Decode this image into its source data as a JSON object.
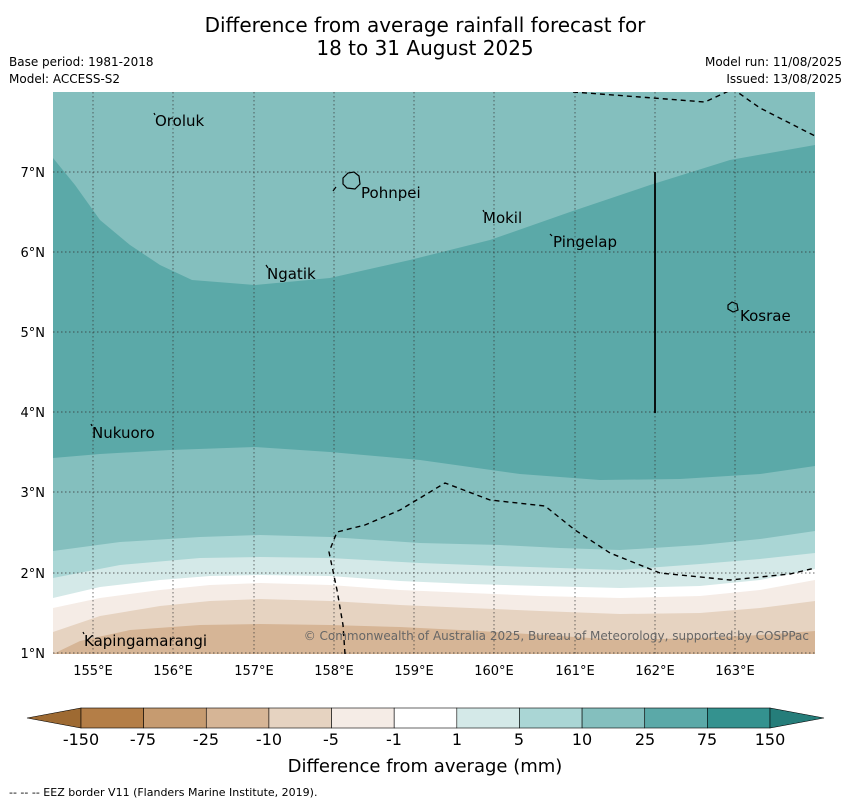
{
  "title_line1": "Difference from average rainfall forecast for",
  "title_line2": "18 to 31 August 2025",
  "base_period": "Base period: 1981-2018",
  "model": "Model: ACCESS-S2",
  "model_run": "Model run: 11/08/2025",
  "issued": "Issued: 13/08/2025",
  "copyright": "© Commonwealth of Australia 2025, Bureau of Meteorology, supported by COSPPac",
  "map": {
    "lon_range": [
      154.5,
      164.0
    ],
    "lat_range": [
      1.0,
      8.0
    ],
    "lon_ticks": [
      "155°E",
      "156°E",
      "157°E",
      "158°E",
      "159°E",
      "160°E",
      "161°E",
      "162°E",
      "163°E"
    ],
    "lat_ticks": [
      "1°N",
      "2°N",
      "3°N",
      "4°N",
      "5°N",
      "6°N",
      "7°N"
    ],
    "grid": "dotted",
    "places": [
      {
        "name": "Oroluk",
        "lon": 155.5,
        "lat": 7.7
      },
      {
        "name": "Pohnpei",
        "lon": 158.2,
        "lat": 6.9
      },
      {
        "name": "Mokil",
        "lon": 159.9,
        "lat": 6.5
      },
      {
        "name": "Pingelap",
        "lon": 160.7,
        "lat": 6.2
      },
      {
        "name": "Ngatik",
        "lon": 157.1,
        "lat": 5.8
      },
      {
        "name": "Kosrae",
        "lon": 162.9,
        "lat": 5.3
      },
      {
        "name": "Nukuoro",
        "lon": 154.9,
        "lat": 3.8
      },
      {
        "name": "Kapingamarangi",
        "lon": 154.8,
        "lat": 1.2
      }
    ]
  },
  "colorbar": {
    "label": "Difference from average (mm)",
    "ticks": [
      "-150",
      "-75",
      "-25",
      "-10",
      "-5",
      "-1",
      "1",
      "5",
      "10",
      "25",
      "75",
      "150"
    ],
    "colors": [
      "#9e6a32",
      "#b47e47",
      "#c69b70",
      "#d6b596",
      "#e6d3c1",
      "#f5ece6",
      "#ffffff",
      "#d4e9e8",
      "#aad6d5",
      "#84bfbe",
      "#5ba9a8",
      "#34928f",
      "#257d7a"
    ]
  },
  "footnote": "-- -- -- EEZ border V11 (Flanders Marine Institute, 2019)."
}
